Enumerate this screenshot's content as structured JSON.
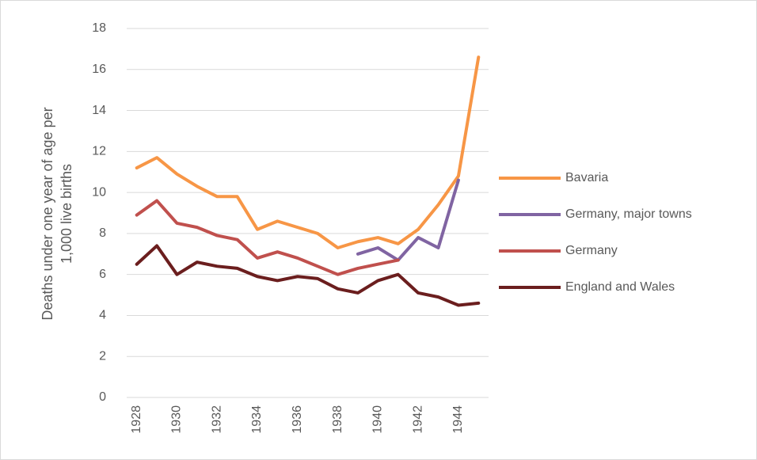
{
  "chart_data": {
    "type": "line",
    "y_label": "Deaths under one year of age per 1,000 live births",
    "categories": [
      "1928",
      null,
      "1930",
      null,
      "1932",
      null,
      "1934",
      null,
      "1936",
      null,
      "1938",
      null,
      "1940",
      null,
      "1942",
      null,
      "1944",
      null
    ],
    "series": [
      {
        "name": "Bavaria",
        "color": "#f79646",
        "values": [
          11.2,
          11.7,
          10.9,
          10.3,
          9.8,
          9.8,
          8.2,
          8.6,
          8.3,
          8.0,
          7.3,
          7.6,
          7.8,
          7.5,
          8.2,
          9.4,
          10.8,
          16.6
        ]
      },
      {
        "name": "Germany, major towns",
        "color": "#8064a2",
        "values": [
          null,
          null,
          null,
          null,
          null,
          null,
          null,
          null,
          null,
          null,
          null,
          7.0,
          7.3,
          6.7,
          7.8,
          7.3,
          10.6,
          null
        ]
      },
      {
        "name": "Germany",
        "color": "#c0504d",
        "values": [
          8.9,
          9.6,
          8.5,
          8.3,
          7.9,
          7.7,
          6.8,
          7.1,
          6.8,
          6.4,
          6.0,
          6.3,
          6.5,
          6.7,
          null,
          null,
          null,
          null
        ]
      },
      {
        "name": "England and Wales",
        "color": "#6b1e1e",
        "values": [
          6.5,
          7.4,
          6.0,
          6.6,
          6.4,
          6.3,
          5.9,
          5.7,
          5.9,
          5.8,
          5.3,
          5.1,
          5.7,
          6.0,
          5.1,
          4.9,
          4.5,
          4.6
        ]
      }
    ],
    "ylim": [
      0,
      18
    ],
    "yticks": [
      0,
      2,
      4,
      6,
      8,
      10,
      12,
      14,
      16,
      18
    ],
    "grid": true,
    "legend": "right"
  }
}
